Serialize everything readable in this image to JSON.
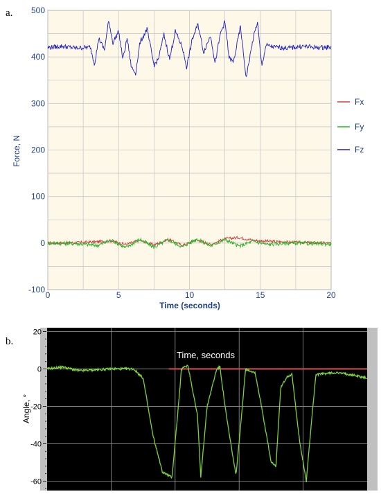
{
  "panels": {
    "a_label": "a.",
    "b_label": "b."
  },
  "colors": {
    "fx": "#d23b3b",
    "fy": "#22b422",
    "fz": "#1a1ac8",
    "angle": "#7cd43a",
    "angle_ref": "#d04a4a",
    "panel_a_bg": "#fdf8e8",
    "panel_b_bg": "#000000"
  },
  "chart_data": [
    {
      "type": "line",
      "panel": "a",
      "title": "",
      "xlabel": "Time (seconds)",
      "ylabel": "Force, N",
      "xlim": [
        0,
        20
      ],
      "ylim": [
        -100,
        500
      ],
      "x_ticks": [
        "0",
        "5",
        "10",
        "15",
        "20"
      ],
      "y_ticks": [
        "-100",
        "0",
        "100",
        "200",
        "300",
        "400",
        "500"
      ],
      "grid": true,
      "legend_position": "right",
      "series": [
        {
          "name": "Fx",
          "color": "#d23b3b",
          "x": [
            0,
            2,
            3.5,
            4.5,
            5.5,
            6.5,
            7.5,
            8.5,
            9.5,
            10.5,
            11.5,
            12.5,
            13.5,
            14.5,
            15.5,
            17,
            20
          ],
          "y": [
            0,
            1,
            3,
            5,
            -3,
            6,
            -4,
            8,
            -5,
            7,
            -3,
            9,
            12,
            6,
            4,
            2,
            0
          ]
        },
        {
          "name": "Fy",
          "color": "#22b422",
          "x": [
            0,
            2,
            3.5,
            4.5,
            5.5,
            6.5,
            7.5,
            8.5,
            9.5,
            10.5,
            11.5,
            12.5,
            13.5,
            14.5,
            15.5,
            17,
            20
          ],
          "y": [
            0,
            -1,
            -5,
            6,
            -10,
            8,
            -9,
            7,
            -8,
            9,
            -6,
            8,
            -7,
            4,
            -3,
            0,
            -2
          ]
        },
        {
          "name": "Fz",
          "color": "#1a1ac8",
          "x": [
            0,
            1,
            2,
            3,
            3.3,
            3.6,
            4,
            4.3,
            4.6,
            5,
            5.3,
            5.6,
            5.9,
            6.2,
            6.5,
            7,
            7.5,
            7.8,
            8.2,
            8.6,
            9,
            9.5,
            9.8,
            10.2,
            10.6,
            11,
            11.5,
            11.8,
            12.2,
            12.5,
            12.8,
            13.1,
            13.6,
            14,
            14.5,
            14.8,
            15.1,
            15.4,
            16,
            17,
            18,
            19,
            20
          ],
          "y": [
            420,
            423,
            419,
            421,
            385,
            440,
            415,
            478,
            430,
            455,
            395,
            440,
            378,
            365,
            430,
            460,
            382,
            395,
            448,
            395,
            455,
            420,
            378,
            438,
            470,
            410,
            447,
            386,
            452,
            475,
            398,
            388,
            465,
            355,
            440,
            475,
            380,
            425,
            421,
            419,
            423,
            420,
            421
          ]
        }
      ]
    },
    {
      "type": "line",
      "panel": "b",
      "title": "",
      "xlabel": "",
      "ylabel": "Angle, °",
      "annotation": "Time, seconds",
      "xlim": [
        0,
        100
      ],
      "ylim": [
        -65,
        22
      ],
      "x_ticks": [],
      "y_ticks": [
        "20",
        "0",
        "-20",
        "-40",
        "-60"
      ],
      "grid": true,
      "series": [
        {
          "name": "",
          "color": "#7cd43a",
          "x": [
            0,
            5,
            10,
            20,
            27,
            30,
            33,
            36,
            39,
            40.5,
            42,
            44,
            47,
            48,
            50,
            53,
            54,
            56,
            59,
            60.5,
            62,
            65,
            67,
            70,
            71.5,
            73,
            75,
            76.5,
            79,
            81,
            82.5,
            84,
            90,
            95,
            100
          ],
          "y": [
            0,
            1,
            -1,
            0,
            0,
            -5,
            -35,
            -55,
            -58,
            -30,
            0,
            2,
            -25,
            -58,
            -20,
            0,
            1,
            -25,
            -57,
            -30,
            0,
            -2,
            -20,
            -50,
            -52,
            -10,
            -4,
            -3,
            -40,
            -60,
            -30,
            -3,
            -2,
            -3,
            -5
          ]
        },
        {
          "name": "",
          "color": "#d04a4a",
          "x": [
            0,
            38,
            40,
            100
          ],
          "y": [
            0,
            0,
            0,
            0
          ]
        }
      ]
    }
  ]
}
